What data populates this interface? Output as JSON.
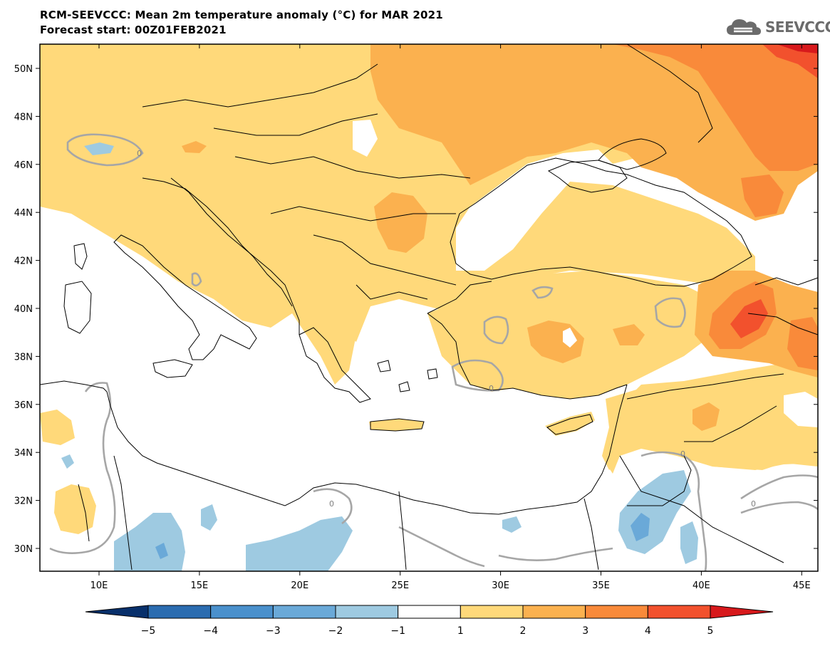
{
  "header": {
    "title_line1": "RCM-SEEVCCC: Mean 2m temperature anomaly (°C) for MAR 2021",
    "title_line2": "Forecast start: 00Z01FEB2021",
    "logo_text": "SEEVCCC"
  },
  "map": {
    "lat_labels": [
      "50N",
      "48N",
      "46N",
      "44N",
      "42N",
      "40N",
      "38N",
      "36N",
      "34N",
      "32N",
      "30N"
    ],
    "lon_labels": [
      "10E",
      "15E",
      "20E",
      "25E",
      "30E",
      "35E",
      "40E",
      "45E"
    ],
    "contour_label": "0"
  },
  "legend": {
    "tick_labels": [
      "−5",
      "−4",
      "−3",
      "−2",
      "−1",
      "1",
      "2",
      "3",
      "4",
      "5"
    ],
    "colors": [
      "#08306b",
      "#2b6cb0",
      "#4a90cc",
      "#6aa9d8",
      "#9ecae1",
      "#ffffff",
      "#ffd97a",
      "#fbb14f",
      "#f98a3a",
      "#f2512d",
      "#d7191c"
    ]
  },
  "colors": {
    "land_outline": "#000000",
    "zero_contour": "#a6a6a6",
    "anomaly_1_2": "#ffd97a",
    "anomaly_2_3": "#fbb14f",
    "anomaly_3_4": "#f98a3a",
    "anomaly_4_5": "#f2512d",
    "anomaly_gt5": "#d7191c",
    "anomaly_m1_m2": "#9ecae1",
    "anomaly_m2_m3": "#6aa9d8"
  }
}
